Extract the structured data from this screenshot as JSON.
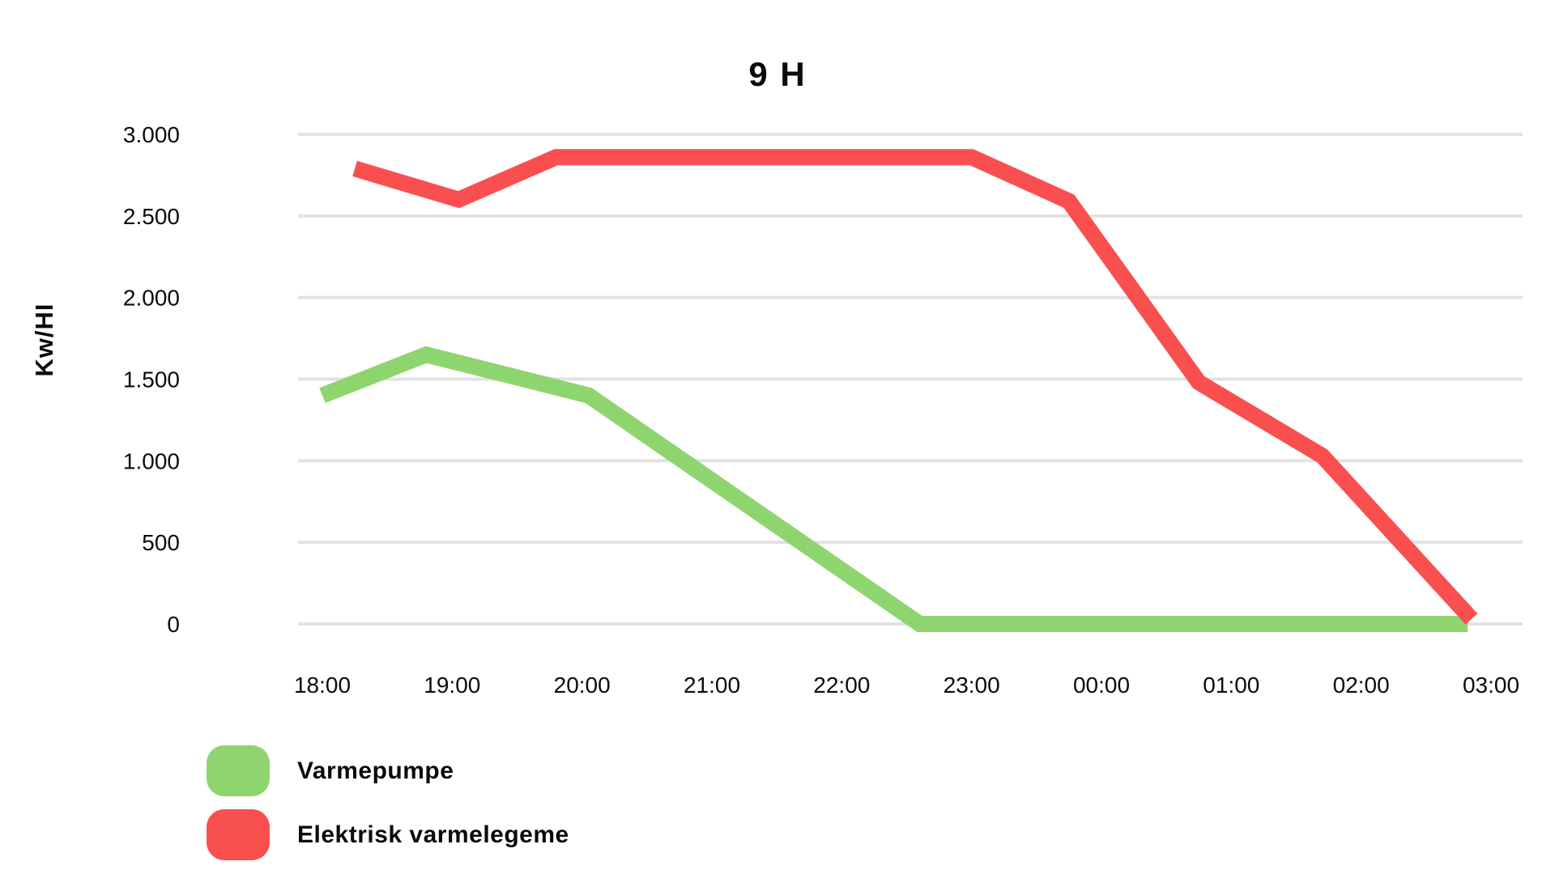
{
  "colors": {
    "background": "#FFFFFF",
    "gridline": "#E2E2E2",
    "text": "#0B0B0B",
    "varmepumpe_green": "#8FD56F",
    "elektrisk_red": "#F94F4F"
  },
  "chart_data": {
    "type": "line",
    "title": "9 H",
    "xlabel": "",
    "ylabel": "Kw/HI",
    "x_unit": "hours after 18:00",
    "ylim": [
      0,
      3000
    ],
    "grid": "horizontal",
    "legend_position": "bottom-left",
    "x_ticks": [
      {
        "label": "18:00",
        "t": 0
      },
      {
        "label": "19:00",
        "t": 1
      },
      {
        "label": "20:00",
        "t": 2
      },
      {
        "label": "21:00",
        "t": 3
      },
      {
        "label": "22:00",
        "t": 4
      },
      {
        "label": "23:00",
        "t": 5
      },
      {
        "label": "00:00",
        "t": 6
      },
      {
        "label": "01:00",
        "t": 7
      },
      {
        "label": "02:00",
        "t": 8
      },
      {
        "label": "03:00",
        "t": 9
      }
    ],
    "y_ticks": [
      {
        "label": "3.000",
        "value": 3000
      },
      {
        "label": "2.500",
        "value": 2500
      },
      {
        "label": "2.000",
        "value": 2000
      },
      {
        "label": "1.500",
        "value": 1500
      },
      {
        "label": "1.000",
        "value": 1000
      },
      {
        "label": "500",
        "value": 500
      },
      {
        "label": "0",
        "value": 0
      }
    ],
    "series": [
      {
        "name": "Varmepumpe",
        "color": "#8FD56F",
        "points": [
          [
            0,
            1400
          ],
          [
            0.8,
            1650
          ],
          [
            2.05,
            1400
          ],
          [
            4.6,
            0
          ],
          [
            8.82,
            0
          ]
        ]
      },
      {
        "name": "Elektrisk varmelegeme",
        "color": "#F94F4F",
        "points": [
          [
            0.25,
            2790
          ],
          [
            1.05,
            2600
          ],
          [
            1.8,
            2860
          ],
          [
            5,
            2860
          ],
          [
            5.75,
            2590
          ],
          [
            6.75,
            1480
          ],
          [
            7.7,
            1030
          ],
          [
            8.85,
            30
          ]
        ]
      }
    ]
  }
}
